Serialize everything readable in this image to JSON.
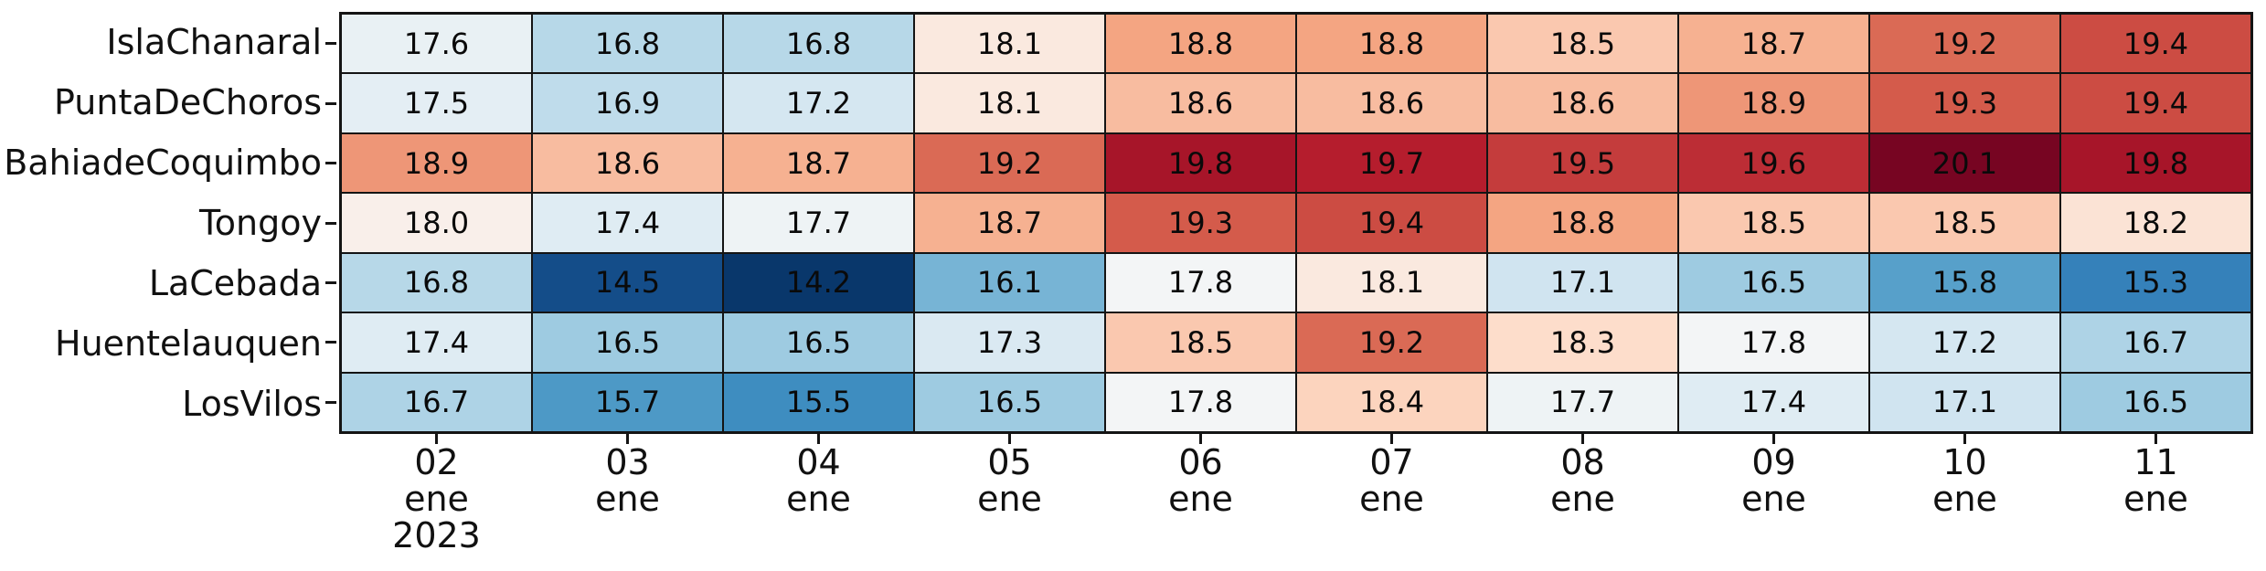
{
  "chart_data": {
    "type": "heatmap",
    "title": "",
    "xlabel": "",
    "ylabel": "",
    "legend": "none",
    "rows": [
      "IslaChanaral",
      "PuntaDeChoros",
      "BahiadeCoquimbo",
      "Tongoy",
      "LaCebada",
      "Huentelauquen",
      "LosVilos"
    ],
    "columns": [
      [
        "02",
        "ene",
        "2023"
      ],
      [
        "03",
        "ene"
      ],
      [
        "04",
        "ene"
      ],
      [
        "05",
        "ene"
      ],
      [
        "06",
        "ene"
      ],
      [
        "07",
        "ene"
      ],
      [
        "08",
        "ene"
      ],
      [
        "09",
        "ene"
      ],
      [
        "10",
        "ene"
      ],
      [
        "11",
        "ene"
      ]
    ],
    "values": [
      [
        17.6,
        16.8,
        16.8,
        18.1,
        18.8,
        18.8,
        18.5,
        18.7,
        19.2,
        19.4
      ],
      [
        17.5,
        16.9,
        17.2,
        18.1,
        18.6,
        18.6,
        18.6,
        18.9,
        19.3,
        19.4
      ],
      [
        18.9,
        18.6,
        18.7,
        19.2,
        19.8,
        19.7,
        19.5,
        19.6,
        20.1,
        19.8
      ],
      [
        18.0,
        17.4,
        17.7,
        18.7,
        19.3,
        19.4,
        18.8,
        18.5,
        18.5,
        18.2
      ],
      [
        16.8,
        14.5,
        14.2,
        16.1,
        17.8,
        18.1,
        17.1,
        16.5,
        15.8,
        15.3
      ],
      [
        17.4,
        16.5,
        16.5,
        17.3,
        18.5,
        19.2,
        18.3,
        17.8,
        17.2,
        16.7
      ],
      [
        16.7,
        15.7,
        15.5,
        16.5,
        17.8,
        18.4,
        17.7,
        17.4,
        17.1,
        16.5
      ]
    ],
    "value_format": ".1f",
    "annotation_color": "#0a0a0a",
    "grid_line_color": "#141414",
    "background": "#ffffff",
    "colormap": {
      "name": "RdBu_r",
      "anchors": [
        "#053061",
        "#2166ac",
        "#4393c3",
        "#92c5de",
        "#d1e5f0",
        "#f7f7f7",
        "#fddbc7",
        "#f4a582",
        "#d6604d",
        "#b2182b",
        "#67001f"
      ],
      "vmin": 14.1,
      "vcenter": 17.87,
      "vmax": 20.2
    }
  }
}
